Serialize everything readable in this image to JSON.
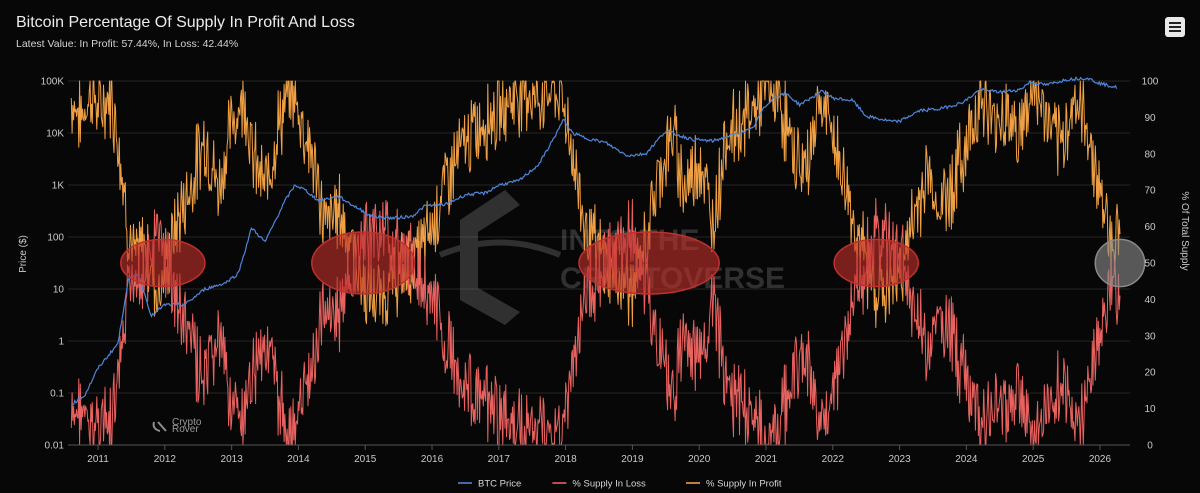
{
  "header": {
    "title": "Bitcoin Percentage Of Supply In Profit And Loss",
    "subtitle": "Latest Value: In Profit: 57.44%, In Loss: 42.44%"
  },
  "watermark": {
    "line1": "INTO THE",
    "line2": "CRYPTOVERSE",
    "badge_line1": "Crypto",
    "badge_line2": "Rover"
  },
  "colors": {
    "btc_price": "#4f86d9",
    "supply_loss": "#e8625f",
    "supply_profit": "#f0a044",
    "highlight_red": "#c0302c",
    "highlight_gray": "#8a8a8a",
    "background": "#070707"
  },
  "chart_data": {
    "type": "line",
    "title": "Bitcoin Percentage Of Supply In Profit And Loss",
    "x_type": "year",
    "x_range": [
      2010.55,
      2026.45
    ],
    "x_ticks": [
      "2011",
      "2012",
      "2013",
      "2014",
      "2015",
      "2016",
      "2017",
      "2018",
      "2019",
      "2020",
      "2021",
      "2022",
      "2023",
      "2024",
      "2025",
      "2026"
    ],
    "y_left": {
      "label": "Price ($)",
      "scale": "log",
      "range": [
        0.01,
        100000
      ],
      "ticks": [
        {
          "v": 0.01,
          "label": "0.01"
        },
        {
          "v": 0.1,
          "label": "0.1"
        },
        {
          "v": 1,
          "label": "1"
        },
        {
          "v": 10,
          "label": "10"
        },
        {
          "v": 100,
          "label": "100"
        },
        {
          "v": 1000,
          "label": "1K"
        },
        {
          "v": 10000,
          "label": "10K"
        },
        {
          "v": 100000,
          "label": "100K"
        }
      ]
    },
    "y_right": {
      "label": "% Of Total Supply",
      "scale": "linear",
      "range": [
        0,
        100
      ],
      "ticks": [
        0,
        10,
        20,
        30,
        40,
        50,
        60,
        70,
        80,
        90,
        100
      ]
    },
    "grid": true,
    "legend": {
      "position": "bottom",
      "items": [
        {
          "name": "BTC Price",
          "color": "#4f86d9"
        },
        {
          "name": "% Supply In Loss",
          "color": "#e8625f"
        },
        {
          "name": "% Supply In Profit",
          "color": "#f0a044"
        }
      ]
    },
    "series": [
      {
        "name": "BTC Price",
        "axis": "left",
        "x": [
          2010.6,
          2010.8,
          2011.0,
          2011.3,
          2011.45,
          2011.6,
          2011.8,
          2012.0,
          2012.3,
          2012.6,
          2012.9,
          2013.1,
          2013.3,
          2013.5,
          2013.8,
          2013.95,
          2014.1,
          2014.3,
          2014.6,
          2014.9,
          2015.1,
          2015.4,
          2015.7,
          2015.9,
          2016.2,
          2016.5,
          2016.8,
          2017.0,
          2017.3,
          2017.6,
          2017.8,
          2017.97,
          2018.1,
          2018.3,
          2018.6,
          2018.9,
          2018.97,
          2019.2,
          2019.5,
          2019.7,
          2019.9,
          2020.2,
          2020.5,
          2020.8,
          2020.95,
          2021.1,
          2021.3,
          2021.5,
          2021.85,
          2022.0,
          2022.3,
          2022.5,
          2022.9,
          2023.0,
          2023.3,
          2023.6,
          2023.9,
          2024.0,
          2024.2,
          2024.5,
          2024.8,
          2024.95,
          2025.2,
          2025.5,
          2025.8,
          2026.0,
          2026.25
        ],
        "values": [
          0.06,
          0.09,
          0.3,
          0.9,
          15,
          20,
          3,
          5,
          5,
          10,
          13,
          20,
          150,
          80,
          500,
          1000,
          800,
          500,
          600,
          350,
          250,
          230,
          250,
          400,
          420,
          650,
          700,
          1000,
          1200,
          2500,
          7000,
          18000,
          10000,
          8000,
          6500,
          3800,
          3700,
          4000,
          11000,
          9000,
          7500,
          7000,
          9200,
          12000,
          28000,
          47000,
          58000,
          35000,
          64000,
          47000,
          42000,
          21000,
          16500,
          16800,
          27000,
          29000,
          37000,
          43000,
          68000,
          61000,
          68000,
          95000,
          84000,
          107000,
          115000,
          90000,
          75000
        ]
      },
      {
        "name": "% Supply In Profit",
        "axis": "right",
        "x": [
          2010.6,
          2010.75,
          2010.9,
          2011.0,
          2011.2,
          2011.3,
          2011.45,
          2011.55,
          2011.7,
          2011.9,
          2012.0,
          2012.2,
          2012.4,
          2012.6,
          2012.8,
          2013.0,
          2013.2,
          2013.3,
          2013.5,
          2013.7,
          2013.9,
          2014.0,
          2014.2,
          2014.4,
          2014.6,
          2014.8,
          2015.0,
          2015.2,
          2015.4,
          2015.6,
          2015.8,
          2016.0,
          2016.2,
          2016.4,
          2016.6,
          2016.8,
          2017.0,
          2017.2,
          2017.4,
          2017.6,
          2017.8,
          2018.0,
          2018.1,
          2018.3,
          2018.5,
          2018.7,
          2018.9,
          2019.0,
          2019.2,
          2019.4,
          2019.6,
          2019.8,
          2020.0,
          2020.2,
          2020.4,
          2020.6,
          2020.8,
          2021.0,
          2021.2,
          2021.4,
          2021.6,
          2021.8,
          2022.0,
          2022.2,
          2022.4,
          2022.6,
          2022.8,
          2023.0,
          2023.2,
          2023.4,
          2023.6,
          2023.8,
          2024.0,
          2024.2,
          2024.4,
          2024.6,
          2024.8,
          2025.0,
          2025.2,
          2025.4,
          2025.6,
          2025.8,
          2026.0,
          2026.15,
          2026.3
        ],
        "values": [
          95,
          90,
          98,
          92,
          96,
          85,
          60,
          50,
          55,
          42,
          48,
          62,
          72,
          85,
          70,
          88,
          97,
          80,
          70,
          88,
          98,
          92,
          80,
          60,
          65,
          55,
          42,
          40,
          45,
          48,
          52,
          60,
          72,
          80,
          85,
          90,
          92,
          96,
          98,
          95,
          99,
          92,
          80,
          60,
          52,
          48,
          45,
          42,
          55,
          75,
          85,
          70,
          80,
          60,
          85,
          88,
          92,
          98,
          96,
          80,
          75,
          95,
          85,
          70,
          55,
          45,
          42,
          48,
          60,
          75,
          65,
          72,
          82,
          96,
          88,
          92,
          85,
          98,
          90,
          80,
          95,
          88,
          70,
          58,
          57
        ]
      },
      {
        "name": "% Supply In Loss",
        "axis": "right",
        "x": [
          2010.6,
          2010.75,
          2010.9,
          2011.0,
          2011.2,
          2011.3,
          2011.45,
          2011.55,
          2011.7,
          2011.9,
          2012.0,
          2012.2,
          2012.4,
          2012.6,
          2012.8,
          2013.0,
          2013.2,
          2013.3,
          2013.5,
          2013.7,
          2013.9,
          2014.0,
          2014.2,
          2014.4,
          2014.6,
          2014.8,
          2015.0,
          2015.2,
          2015.4,
          2015.6,
          2015.8,
          2016.0,
          2016.2,
          2016.4,
          2016.6,
          2016.8,
          2017.0,
          2017.2,
          2017.4,
          2017.6,
          2017.8,
          2018.0,
          2018.1,
          2018.3,
          2018.5,
          2018.7,
          2018.9,
          2019.0,
          2019.2,
          2019.4,
          2019.6,
          2019.8,
          2020.0,
          2020.2,
          2020.4,
          2020.6,
          2020.8,
          2021.0,
          2021.2,
          2021.4,
          2021.6,
          2021.8,
          2022.0,
          2022.2,
          2022.4,
          2022.6,
          2022.8,
          2023.0,
          2023.2,
          2023.4,
          2023.6,
          2023.8,
          2024.0,
          2024.2,
          2024.4,
          2024.6,
          2024.8,
          2025.0,
          2025.2,
          2025.4,
          2025.6,
          2025.8,
          2026.0,
          2026.15,
          2026.3
        ],
        "values": [
          5,
          10,
          2,
          8,
          4,
          15,
          40,
          50,
          45,
          58,
          52,
          38,
          28,
          15,
          30,
          12,
          3,
          20,
          30,
          12,
          2,
          8,
          20,
          40,
          35,
          45,
          58,
          60,
          55,
          52,
          48,
          40,
          28,
          20,
          15,
          10,
          8,
          4,
          2,
          5,
          1,
          8,
          20,
          40,
          48,
          52,
          55,
          58,
          45,
          25,
          15,
          30,
          20,
          40,
          15,
          12,
          8,
          2,
          4,
          20,
          25,
          5,
          15,
          30,
          45,
          55,
          58,
          52,
          40,
          25,
          35,
          28,
          18,
          4,
          12,
          8,
          15,
          2,
          10,
          20,
          5,
          12,
          30,
          42,
          42
        ]
      }
    ],
    "highlights": [
      {
        "cx": 2011.97,
        "cy": 50,
        "rx": 0.63,
        "ry": 6.5,
        "color": "red"
      },
      {
        "cx": 2014.97,
        "cy": 50,
        "rx": 0.77,
        "ry": 8.5,
        "color": "red"
      },
      {
        "cx": 2019.25,
        "cy": 50,
        "rx": 1.05,
        "ry": 8.5,
        "color": "red"
      },
      {
        "cx": 2022.65,
        "cy": 50,
        "rx": 0.63,
        "ry": 6.5,
        "color": "red"
      },
      {
        "cx": 2026.3,
        "cy": 50,
        "rx": 0.37,
        "ry": 6.5,
        "color": "gray"
      }
    ]
  }
}
